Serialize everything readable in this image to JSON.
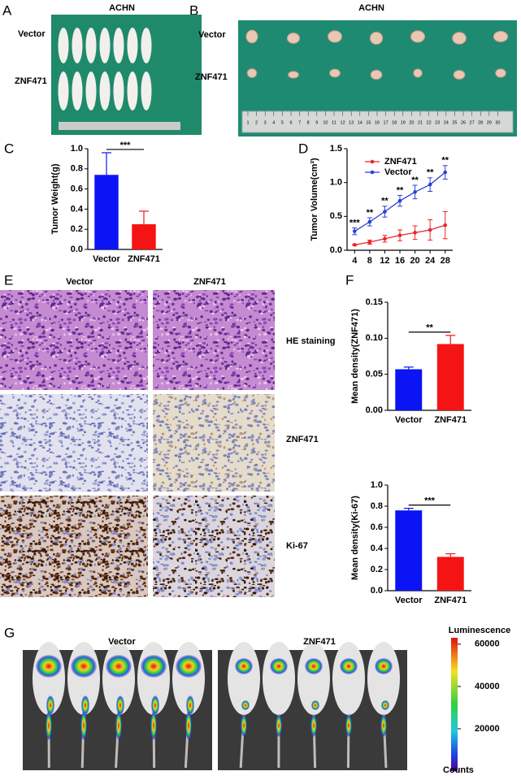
{
  "panels": {
    "A": {
      "letter": "A",
      "title": "ACHN",
      "rows": [
        "Vector",
        "ZNF471"
      ]
    },
    "B": {
      "letter": "B",
      "title": "ACHN",
      "rows": [
        "Vector",
        "ZNF471"
      ],
      "ruler": [
        1,
        2,
        3,
        4,
        5,
        6,
        7,
        8,
        9,
        10,
        11,
        12,
        13,
        14,
        15,
        16,
        17,
        18,
        19,
        20,
        21,
        22,
        23,
        24,
        25,
        26,
        27,
        28,
        29,
        30
      ]
    },
    "C": {
      "letter": "C"
    },
    "D": {
      "letter": "D"
    },
    "E": {
      "letter": "E",
      "columns": [
        "Vector",
        "ZNF471"
      ],
      "rows": [
        "HE staining",
        "ZNF471",
        "Ki-67"
      ]
    },
    "F": {
      "letter": "F"
    },
    "G": {
      "letter": "G",
      "columns": [
        "Vector",
        "ZNF471"
      ],
      "colorbar": {
        "title": "Luminescence",
        "unit": "Counts",
        "lim": [
          0,
          63000
        ],
        "ticks": [
          20000,
          40000,
          60000
        ]
      }
    }
  },
  "chart_data": [
    {
      "type": "bar",
      "y_label": "Tumor  Weight(g)",
      "categories": [
        "Vector",
        "ZNF471"
      ],
      "values": [
        0.74,
        0.25
      ],
      "errors": [
        0.22,
        0.13
      ],
      "colors": [
        "#0a14f5",
        "#f51414"
      ],
      "significance": "***",
      "ylim": [
        0,
        1
      ],
      "yticks": [
        {
          "value": 0,
          "label": "0.0"
        },
        0.2,
        0.4,
        0.6,
        0.8,
        {
          "value": 1,
          "label": "1.0"
        }
      ]
    },
    {
      "type": "line",
      "y_label": "Tumor Volume(cm³)",
      "x": [
        4,
        8,
        12,
        16,
        20,
        24,
        28
      ],
      "xlim": [
        2,
        30
      ],
      "xticks": [
        4,
        8,
        12,
        16,
        20,
        24,
        28
      ],
      "ylim": [
        0,
        1.5
      ],
      "yticks": [
        {
          "value": 0,
          "label": "0.0"
        },
        0.5,
        {
          "value": 1,
          "label": "1.0"
        },
        1.5
      ],
      "series": [
        {
          "name": "ZNF471",
          "color": "#e8262a",
          "values": [
            0.08,
            0.12,
            0.17,
            0.22,
            0.26,
            0.3,
            0.37
          ],
          "errors": [
            0.01,
            0.03,
            0.05,
            0.08,
            0.1,
            0.15,
            0.2
          ]
        },
        {
          "name": "Vector",
          "color": "#2a3fd8",
          "values": [
            0.28,
            0.42,
            0.57,
            0.73,
            0.86,
            0.97,
            1.15
          ],
          "errors": [
            0.05,
            0.06,
            0.08,
            0.08,
            0.1,
            0.1,
            0.1
          ]
        }
      ],
      "annotations": [
        "***",
        "**",
        "**",
        "**",
        "**",
        "**",
        "**"
      ]
    },
    {
      "type": "bar",
      "y_label": "Mean density(ZNF471)",
      "categories": [
        "Vector",
        "ZNF471"
      ],
      "values": [
        0.057,
        0.092
      ],
      "errors": [
        0.003,
        0.012
      ],
      "colors": [
        "#0a14f5",
        "#f51414"
      ],
      "significance": "**",
      "ylim": [
        0,
        0.15
      ],
      "yticks": [
        {
          "value": 0,
          "label": "0.00"
        },
        {
          "value": 0.05,
          "label": "0.05"
        },
        {
          "value": 0.1,
          "label": "0.10"
        },
        {
          "value": 0.15,
          "label": "0.15"
        }
      ]
    },
    {
      "type": "bar",
      "y_label": "Mean density(Ki-67)",
      "categories": [
        "Vector",
        "ZNF471"
      ],
      "values": [
        0.76,
        0.32
      ],
      "errors": [
        0.02,
        0.03
      ],
      "colors": [
        "#0a14f5",
        "#f51414"
      ],
      "significance": "***",
      "ylim": [
        0,
        1
      ],
      "yticks": [
        {
          "value": 0,
          "label": "0.0"
        },
        0.2,
        0.4,
        0.6,
        0.8,
        {
          "value": 1,
          "label": "1.0"
        }
      ]
    }
  ]
}
